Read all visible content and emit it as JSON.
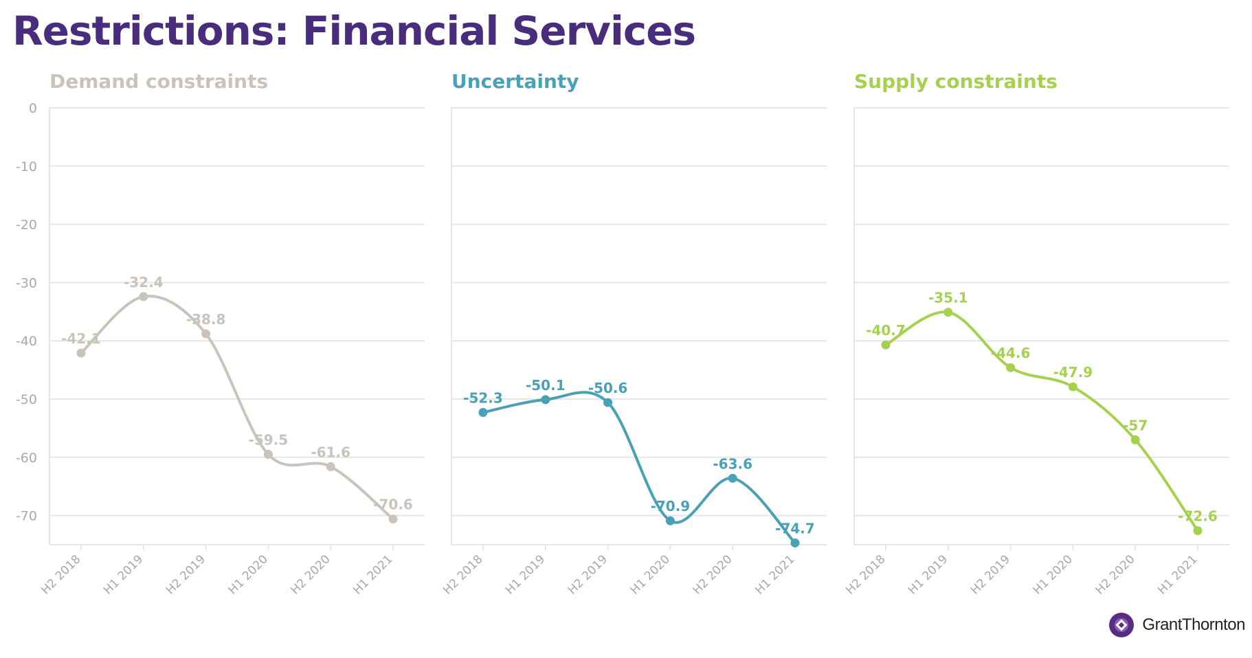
{
  "page": {
    "title": "Restrictions: Financial Services"
  },
  "brand": {
    "name": "GrantThornton"
  },
  "colors": {
    "title": "#4a2c7d",
    "grid": "#e6e6e6",
    "axis_text": "#a8a8a8"
  },
  "chart_data": [
    {
      "type": "line",
      "title": "Demand constraints",
      "color": "#c9c3bb",
      "categories": [
        "H2 2018",
        "H1 2019",
        "H2 2019",
        "H1 2020",
        "H2 2020",
        "H1 2021"
      ],
      "values": [
        -42.1,
        -32.4,
        -38.8,
        -59.5,
        -61.6,
        -70.6
      ],
      "ylim": [
        -75,
        0
      ],
      "yticks": [
        0,
        -10,
        -20,
        -30,
        -40,
        -50,
        -60,
        -70
      ],
      "ytick_labels": [
        "0",
        "-10",
        "-20",
        "-30",
        "-40",
        "-50",
        "-60",
        "-70"
      ],
      "show_y_axis": true
    },
    {
      "type": "line",
      "title": "Uncertainty",
      "color": "#4aa0b5",
      "categories": [
        "H2 2018",
        "H1 2019",
        "H2 2019",
        "H1 2020",
        "H2 2020",
        "H1 2021"
      ],
      "values": [
        -52.3,
        -50.1,
        -50.6,
        -70.9,
        -63.6,
        -74.7
      ],
      "ylim": [
        -75,
        0
      ],
      "yticks": [
        0,
        -10,
        -20,
        -30,
        -40,
        -50,
        -60,
        -70
      ],
      "ytick_labels": [],
      "show_y_axis": false
    },
    {
      "type": "line",
      "title": "Supply constraints",
      "color": "#a6d150",
      "categories": [
        "H2 2018",
        "H1 2019",
        "H2 2019",
        "H1 2020",
        "H2 2020",
        "H1 2021"
      ],
      "values": [
        -40.7,
        -35.1,
        -44.6,
        -47.9,
        -57,
        -72.6
      ],
      "ylim": [
        -75,
        0
      ],
      "yticks": [
        0,
        -10,
        -20,
        -30,
        -40,
        -50,
        -60,
        -70
      ],
      "ytick_labels": [],
      "show_y_axis": false
    }
  ]
}
